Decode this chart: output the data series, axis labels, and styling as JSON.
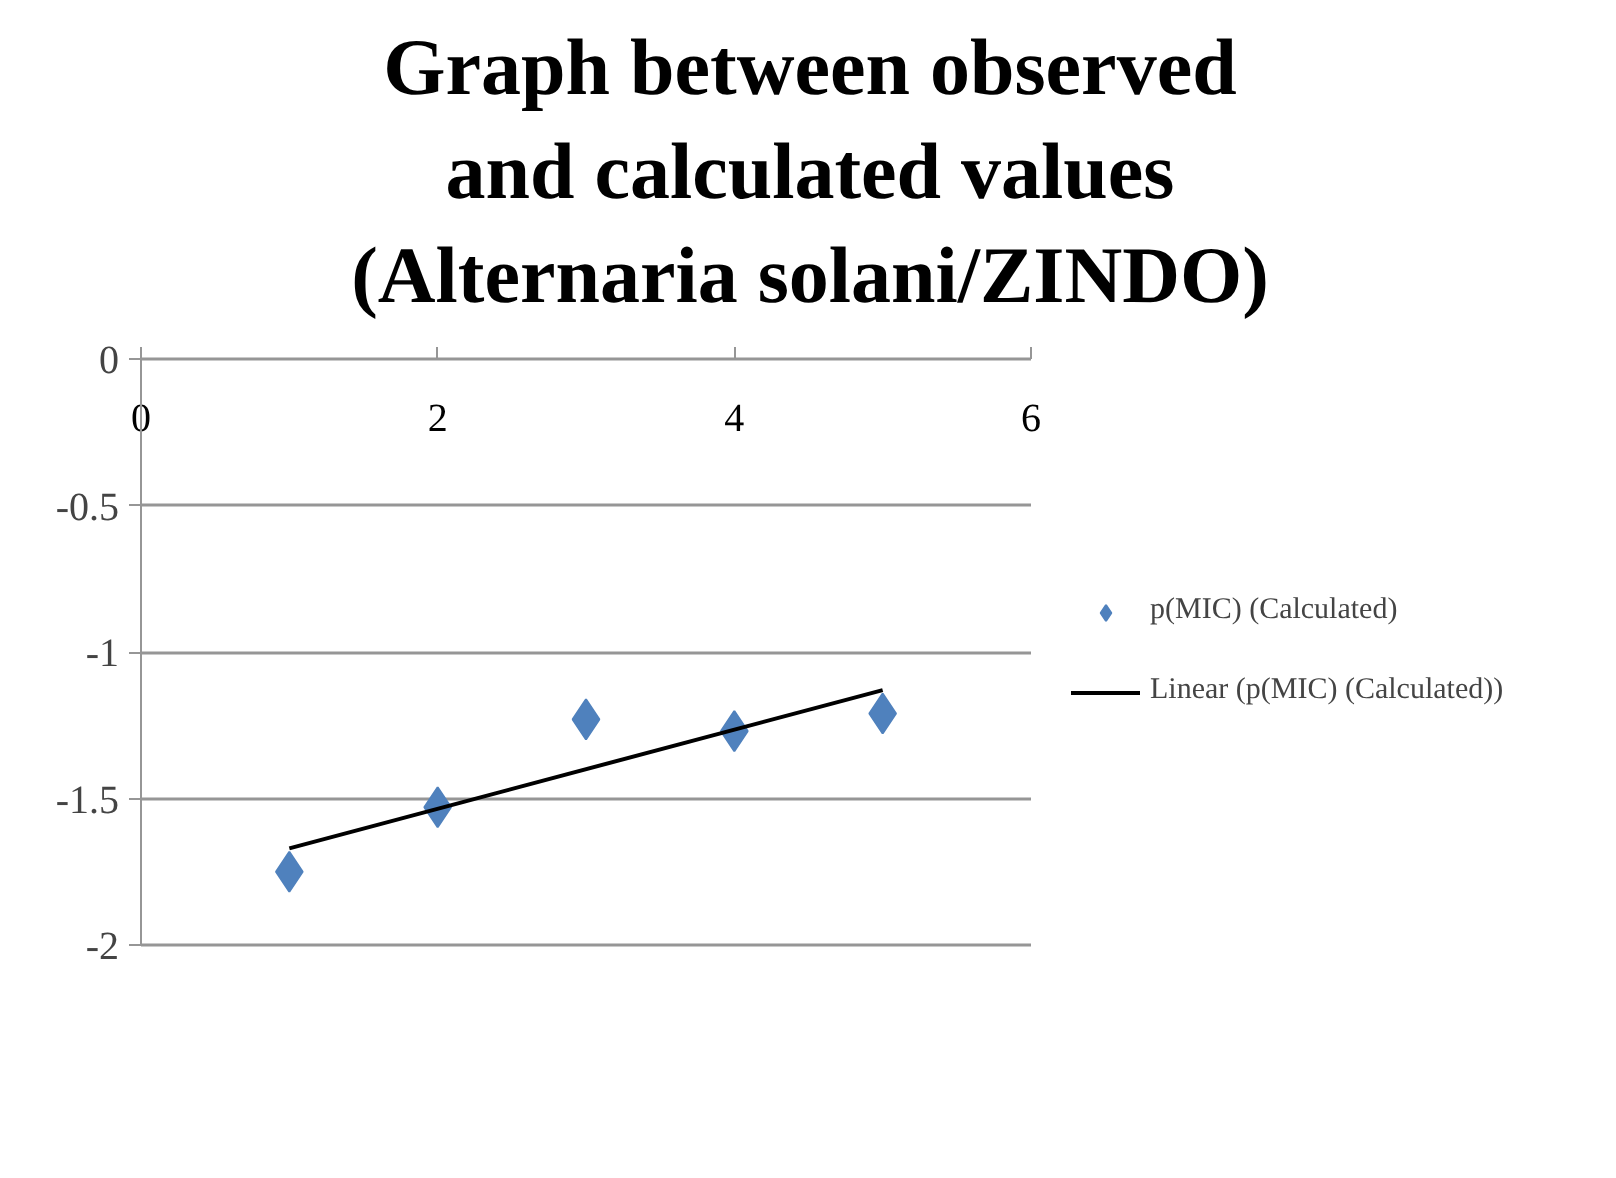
{
  "chart_data": {
    "type": "scatter",
    "title": "Graph between observed and calculated values (Alternaria solani/ZINDO)",
    "x": [
      1,
      2,
      3,
      4,
      5
    ],
    "series": [
      {
        "name": "p(MIC) (Calculated)",
        "color": "#4f81bd",
        "values": [
          -1.75,
          -1.53,
          -1.23,
          -1.27,
          -1.21
        ],
        "marker": "diamond"
      },
      {
        "name": "Linear (p(MIC) (Calculated))",
        "type": "line",
        "color": "#000000",
        "x": [
          1,
          5
        ],
        "values": [
          -1.67,
          -1.13
        ],
        "marker": "none"
      }
    ],
    "xlim": [
      0,
      6
    ],
    "xticks": [
      0,
      2,
      4,
      6
    ],
    "ylim": [
      -2,
      0
    ],
    "yticks": [
      0,
      -0.5,
      -1,
      -1.5,
      -2
    ],
    "grid": "y",
    "legend": "right"
  }
}
